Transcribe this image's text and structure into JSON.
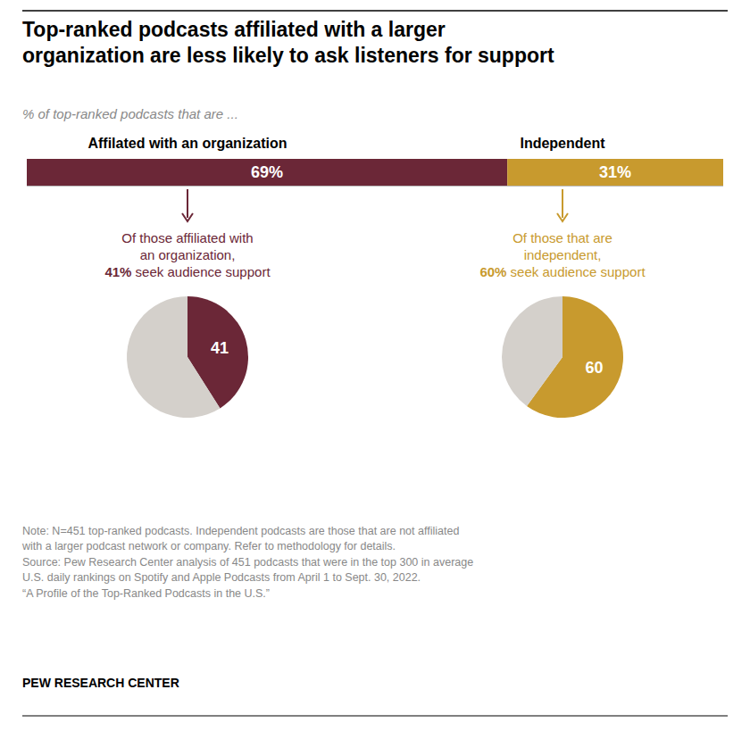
{
  "chart_data": [
    {
      "type": "bar",
      "orientation": "horizontal",
      "stacked": true,
      "data_labels": true,
      "tick_labels": false,
      "title": "Top-ranked podcasts affiliated with a larger\norganization are less likely to ask listeners for support",
      "subtitle": "% of top-ranked podcasts that are ...",
      "categories": [
        null
      ],
      "xlim": [
        0,
        100
      ],
      "series": [
        {
          "name": "Affilated with an organization",
          "color": "#6b2737",
          "values": [
            69
          ],
          "value_labels": [
            "69%"
          ]
        },
        {
          "name": "Independent",
          "color": "#c89a2e",
          "values": [
            31
          ],
          "value_labels": [
            "31%"
          ]
        }
      ],
      "annotations": [
        "Note: N=451 top-ranked podcasts. Independent podcasts are those that are not affiliated\nwith a larger podcast network or company. Refer to methodology for details.\nSource: Pew Research Center analysis of 451 podcasts that were in the top 300 in average\nU.S. daily rankings on Spotify and Apple Podcasts from April 1 to Sept. 30, 2022.\n“A Profile of the Top-Ranked Podcasts in the U.S.”",
        "PEW RESEARCH CENTER"
      ]
    },
    {
      "type": "pie",
      "categories": [
        null,
        null
      ],
      "values": [
        41,
        59
      ],
      "colors": [
        "#6b2737",
        "#d4d0cb"
      ],
      "data_labels": true,
      "value_labels": [
        "41",
        null
      ],
      "annotations": [
        "Of those affiliated with",
        "an organization,",
        "41% seek audience support"
      ]
    },
    {
      "type": "pie",
      "categories": [
        null,
        null
      ],
      "values": [
        60,
        40
      ],
      "colors": [
        "#c89a2e",
        "#d4d0cb"
      ],
      "data_labels": true,
      "value_labels": [
        "60",
        null
      ],
      "annotations": [
        "Of those that are",
        "independent,",
        "60% seek audience support"
      ]
    }
  ]
}
